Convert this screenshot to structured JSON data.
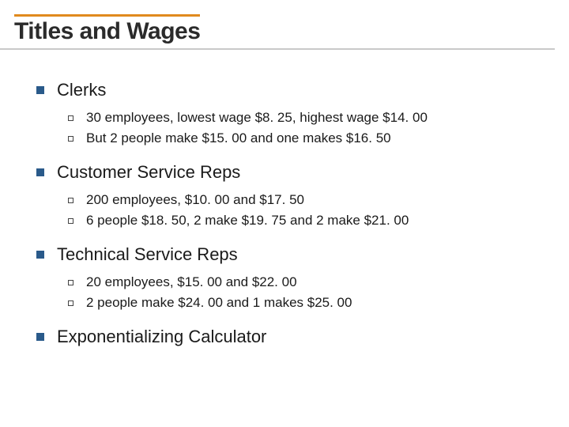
{
  "title": "Titles and Wages",
  "colors": {
    "accent_top": "#e08a1e",
    "title_underline": "#c9c9c9",
    "bullet_l1": "#2a5a8a",
    "bullet_l2_border": "#444444",
    "text": "#1a1a1a",
    "background": "#ffffff"
  },
  "typography": {
    "title_fontsize": 30,
    "title_weight": 700,
    "l1_fontsize": 22,
    "l2_fontsize": 17
  },
  "sections": [
    {
      "heading": "Clerks",
      "items": [
        "30 employees, lowest wage $8. 25, highest wage $14. 00",
        "But 2 people make $15. 00 and one makes $16. 50"
      ]
    },
    {
      "heading": "Customer Service Reps",
      "items": [
        "200 employees, $10. 00 and $17. 50",
        "6 people $18. 50, 2 make $19. 75 and 2 make $21. 00"
      ]
    },
    {
      "heading": "Technical Service Reps",
      "items": [
        "20 employees, $15. 00 and $22. 00",
        "2 people make $24. 00 and 1 makes $25. 00"
      ]
    },
    {
      "heading": "Exponentializing Calculator",
      "items": []
    }
  ]
}
